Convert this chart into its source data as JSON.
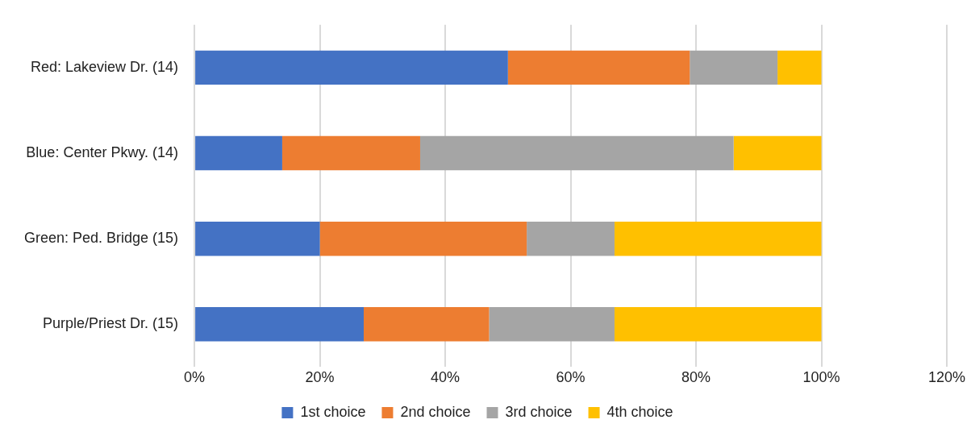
{
  "chart_data": {
    "type": "bar",
    "orientation": "horizontal",
    "stacked": true,
    "categories": [
      "Red: Lakeview Dr. (14)",
      "Blue: Center Pkwy. (14)",
      "Green: Ped. Bridge (15)",
      "Purple/Priest Dr. (15)"
    ],
    "series": [
      {
        "name": "1st choice",
        "color": "#4472c4",
        "values": [
          50,
          14,
          20,
          27
        ]
      },
      {
        "name": "2nd choice",
        "color": "#ed7d31",
        "values": [
          29,
          22,
          33,
          20
        ]
      },
      {
        "name": "3rd choice",
        "color": "#a5a5a5",
        "values": [
          14,
          50,
          14,
          20
        ]
      },
      {
        "name": "4th choice",
        "color": "#ffc000",
        "values": [
          7,
          14,
          33,
          33
        ]
      }
    ],
    "xlim": [
      0,
      120
    ],
    "xticks": [
      {
        "value": 0,
        "label": "0%"
      },
      {
        "value": 20,
        "label": "20%"
      },
      {
        "value": 40,
        "label": "40%"
      },
      {
        "value": 60,
        "label": "60%"
      },
      {
        "value": 80,
        "label": "80%"
      },
      {
        "value": 100,
        "label": "100%"
      },
      {
        "value": 120,
        "label": "120%"
      }
    ],
    "grid": "x",
    "legend": "bottom"
  }
}
